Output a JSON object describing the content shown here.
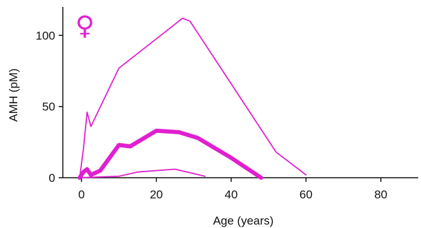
{
  "chart_data": {
    "type": "line",
    "title": "",
    "symbol": "♀",
    "xlabel": "Age (years)",
    "ylabel": "AMH (pM)",
    "xlim": [
      -5,
      90
    ],
    "ylim": [
      0,
      120
    ],
    "xticks": [
      0,
      20,
      40,
      60,
      80
    ],
    "yticks": [
      0,
      50,
      100
    ],
    "grid": false,
    "legend": "none",
    "color": "#e020d0",
    "series": [
      {
        "role": "upper",
        "stroke": "thin",
        "points": [
          [
            -0.5,
            0
          ],
          [
            0.5,
            20
          ],
          [
            1.5,
            46
          ],
          [
            2.5,
            36
          ],
          [
            10,
            77
          ],
          [
            27,
            112
          ],
          [
            29,
            110
          ],
          [
            52,
            18
          ],
          [
            60,
            2
          ]
        ]
      },
      {
        "role": "mean",
        "stroke": "thick",
        "points": [
          [
            -0.5,
            0
          ],
          [
            0.5,
            4
          ],
          [
            1.5,
            6
          ],
          [
            2.5,
            2
          ],
          [
            5,
            5
          ],
          [
            10,
            23
          ],
          [
            13,
            22
          ],
          [
            20,
            33
          ],
          [
            26,
            32
          ],
          [
            31,
            28
          ],
          [
            40,
            14
          ],
          [
            48,
            0
          ]
        ]
      },
      {
        "role": "lower",
        "stroke": "thin",
        "points": [
          [
            -0.5,
            0
          ],
          [
            10,
            1
          ],
          [
            15,
            4
          ],
          [
            25,
            6
          ],
          [
            33,
            1
          ]
        ]
      }
    ]
  }
}
